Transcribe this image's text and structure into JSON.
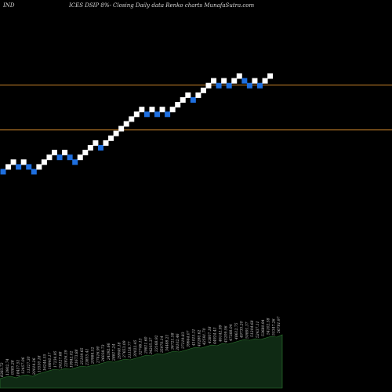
{
  "header": {
    "left": "IND",
    "right": "ICES DSIP 8%-  Closing Daily data  Renko  charts MunafaSutra.com"
  },
  "chart_data": {
    "type": "renko",
    "colors": {
      "up": "#ffffff",
      "down": "#1e6fe0",
      "reference_line": "#c8832a",
      "volume_fill": "#0f2a14",
      "volume_line": "#2e7d32",
      "label": "#cfcfcf"
    },
    "bricks": [
      {
        "dir": "down",
        "level": 0
      },
      {
        "dir": "up",
        "level": 1
      },
      {
        "dir": "up",
        "level": 2
      },
      {
        "dir": "down",
        "level": 1
      },
      {
        "dir": "up",
        "level": 2
      },
      {
        "dir": "down",
        "level": 1
      },
      {
        "dir": "down",
        "level": 0
      },
      {
        "dir": "up",
        "level": 1
      },
      {
        "dir": "up",
        "level": 2
      },
      {
        "dir": "up",
        "level": 3
      },
      {
        "dir": "up",
        "level": 4
      },
      {
        "dir": "down",
        "level": 3
      },
      {
        "dir": "up",
        "level": 4
      },
      {
        "dir": "down",
        "level": 3
      },
      {
        "dir": "down",
        "level": 2
      },
      {
        "dir": "up",
        "level": 3
      },
      {
        "dir": "up",
        "level": 4
      },
      {
        "dir": "up",
        "level": 5
      },
      {
        "dir": "up",
        "level": 6
      },
      {
        "dir": "down",
        "level": 5
      },
      {
        "dir": "up",
        "level": 6
      },
      {
        "dir": "up",
        "level": 7
      },
      {
        "dir": "up",
        "level": 8
      },
      {
        "dir": "up",
        "level": 9
      },
      {
        "dir": "up",
        "level": 10
      },
      {
        "dir": "up",
        "level": 11
      },
      {
        "dir": "up",
        "level": 12
      },
      {
        "dir": "up",
        "level": 13
      },
      {
        "dir": "down",
        "level": 12
      },
      {
        "dir": "up",
        "level": 13
      },
      {
        "dir": "down",
        "level": 12
      },
      {
        "dir": "up",
        "level": 13
      },
      {
        "dir": "down",
        "level": 12
      },
      {
        "dir": "up",
        "level": 13
      },
      {
        "dir": "up",
        "level": 14
      },
      {
        "dir": "up",
        "level": 15
      },
      {
        "dir": "up",
        "level": 16
      },
      {
        "dir": "down",
        "level": 15
      },
      {
        "dir": "up",
        "level": 16
      },
      {
        "dir": "up",
        "level": 17
      },
      {
        "dir": "up",
        "level": 18
      },
      {
        "dir": "up",
        "level": 19
      },
      {
        "dir": "down",
        "level": 18
      },
      {
        "dir": "up",
        "level": 19
      },
      {
        "dir": "down",
        "level": 18
      },
      {
        "dir": "up",
        "level": 19
      },
      {
        "dir": "up",
        "level": 20
      },
      {
        "dir": "down",
        "level": 19
      },
      {
        "dir": "down",
        "level": 18
      },
      {
        "dir": "up",
        "level": 19
      },
      {
        "dir": "down",
        "level": 18
      },
      {
        "dir": "up",
        "level": 19
      },
      {
        "dir": "up",
        "level": 20
      }
    ],
    "reference_levels": [
      9.3,
      18.7
    ],
    "volume": [
      12,
      14,
      15,
      13,
      16,
      17,
      15,
      18,
      20,
      22,
      24,
      23,
      25,
      24,
      26,
      28,
      27,
      29,
      30,
      32,
      34,
      33,
      35,
      37,
      36,
      38,
      40,
      42,
      41,
      44,
      43,
      45,
      47,
      46,
      48,
      50,
      52,
      51,
      53,
      55,
      54,
      57,
      56,
      58,
      60,
      62,
      61,
      63,
      62,
      64,
      66,
      65,
      68
    ],
    "volume_labels": [
      "8383.72",
      "13902.74",
      "9385.28",
      "18437.51",
      "12457.06",
      "11327.30",
      "20014.26",
      "15530.18",
      "16244.55",
      "19840.17",
      "17234.95",
      "24127.68",
      "22816.39",
      "19942.02",
      "21673.88",
      "25109.65",
      "23855.41",
      "20984.52",
      "27416.90",
      "26038.73",
      "24392.66",
      "28817.24",
      "29940.18",
      "27653.09",
      "31158.77",
      "30022.45",
      "32746.13",
      "29811.60",
      "34205.37",
      "33168.92",
      "35970.14",
      "34488.21",
      "36721.58",
      "38102.46",
      "37219.83",
      "39644.07",
      "41015.31",
      "40280.62",
      "42591.70",
      "43807.18",
      "44924.43",
      "46142.99",
      "45209.56",
      "47388.04",
      "48612.75",
      "49735.20",
      "50891.37",
      "51204.68",
      "52437.11",
      "53680.94",
      "54102.58",
      "55347.26",
      "56781.97"
    ]
  }
}
